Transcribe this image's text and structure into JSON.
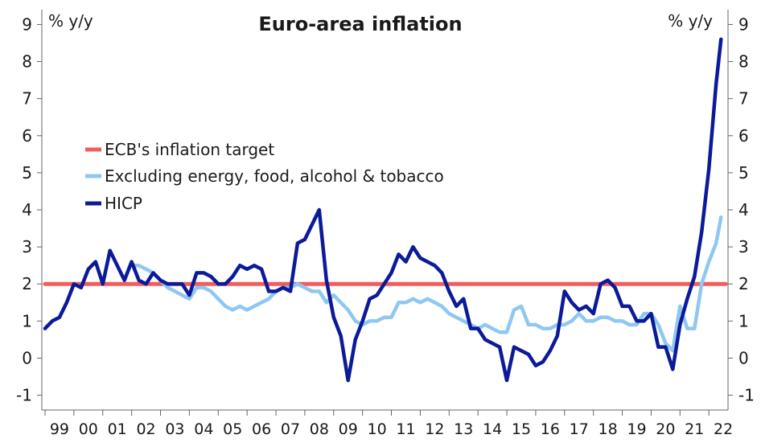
{
  "chart_data": {
    "type": "line",
    "title": "Euro-area inflation",
    "left_unit": "% y/y",
    "right_unit": "% y/y",
    "ylim": [
      -1.4,
      9.4
    ],
    "yticks": [
      -1,
      0,
      1,
      2,
      3,
      4,
      5,
      6,
      7,
      8,
      9
    ],
    "xlim": [
      1999.0,
      2022.58
    ],
    "xticks": [
      {
        "label": "99",
        "x": 1999.5
      },
      {
        "label": "00",
        "x": 2000.5
      },
      {
        "label": "01",
        "x": 2001.5
      },
      {
        "label": "02",
        "x": 2002.5
      },
      {
        "label": "03",
        "x": 2003.5
      },
      {
        "label": "04",
        "x": 2004.5
      },
      {
        "label": "05",
        "x": 2005.5
      },
      {
        "label": "06",
        "x": 2006.5
      },
      {
        "label": "07",
        "x": 2007.5
      },
      {
        "label": "08",
        "x": 2008.5
      },
      {
        "label": "09",
        "x": 2009.5
      },
      {
        "label": "10",
        "x": 2010.5
      },
      {
        "label": "11",
        "x": 2011.5
      },
      {
        "label": "12",
        "x": 2012.5
      },
      {
        "label": "13",
        "x": 2013.5
      },
      {
        "label": "14",
        "x": 2014.5
      },
      {
        "label": "15",
        "x": 2015.5
      },
      {
        "label": "16",
        "x": 2016.5
      },
      {
        "label": "17",
        "x": 2017.5
      },
      {
        "label": "18",
        "x": 2018.5
      },
      {
        "label": "19",
        "x": 2019.5
      },
      {
        "label": "20",
        "x": 2020.5
      },
      {
        "label": "21",
        "x": 2021.5
      },
      {
        "label": "22",
        "x": 2022.5
      }
    ],
    "grid": false,
    "legend_position": "middle-left",
    "series": [
      {
        "name": "ECB's inflation target",
        "color": "#f25c5c",
        "x": [
          1999.0,
          2022.58
        ],
        "y": [
          2.0,
          2.0
        ]
      },
      {
        "name": "Excluding energy, food, alcohol & tobacco",
        "color": "#8ec8f2",
        "x": [
          2002.0,
          2002.25,
          2002.5,
          2002.75,
          2003.0,
          2003.25,
          2003.5,
          2003.75,
          2004.0,
          2004.25,
          2004.5,
          2004.75,
          2005.0,
          2005.25,
          2005.5,
          2005.75,
          2006.0,
          2006.25,
          2006.5,
          2006.75,
          2007.0,
          2007.25,
          2007.5,
          2007.75,
          2008.0,
          2008.25,
          2008.5,
          2008.75,
          2009.0,
          2009.25,
          2009.5,
          2009.75,
          2010.0,
          2010.25,
          2010.5,
          2010.75,
          2011.0,
          2011.25,
          2011.5,
          2011.75,
          2012.0,
          2012.25,
          2012.5,
          2012.75,
          2013.0,
          2013.25,
          2013.5,
          2013.75,
          2014.0,
          2014.25,
          2014.5,
          2014.75,
          2015.0,
          2015.25,
          2015.5,
          2015.75,
          2016.0,
          2016.25,
          2016.5,
          2016.75,
          2017.0,
          2017.25,
          2017.5,
          2017.75,
          2018.0,
          2018.25,
          2018.5,
          2018.75,
          2019.0,
          2019.25,
          2019.5,
          2019.75,
          2020.0,
          2020.25,
          2020.5,
          2020.75,
          2021.0,
          2021.25,
          2021.5,
          2021.75,
          2022.0,
          2022.25,
          2022.42
        ],
        "y": [
          2.5,
          2.5,
          2.4,
          2.3,
          2.1,
          1.9,
          1.8,
          1.7,
          1.6,
          1.9,
          1.9,
          1.8,
          1.6,
          1.4,
          1.3,
          1.4,
          1.3,
          1.4,
          1.5,
          1.6,
          1.8,
          1.9,
          1.9,
          2.0,
          1.9,
          1.8,
          1.8,
          1.5,
          1.7,
          1.5,
          1.3,
          1.0,
          0.9,
          1.0,
          1.0,
          1.1,
          1.1,
          1.5,
          1.5,
          1.6,
          1.5,
          1.6,
          1.5,
          1.4,
          1.2,
          1.1,
          1.0,
          0.9,
          0.8,
          0.9,
          0.8,
          0.7,
          0.7,
          1.3,
          1.4,
          0.9,
          0.9,
          0.8,
          0.8,
          0.9,
          0.9,
          1.0,
          1.2,
          1.0,
          1.0,
          1.1,
          1.1,
          1.0,
          1.0,
          0.9,
          0.9,
          1.2,
          1.2,
          0.9,
          0.4,
          0.2,
          1.4,
          0.8,
          0.8,
          2.0,
          2.6,
          3.1,
          3.8
        ]
      },
      {
        "name": "HICP",
        "color": "#0b1a99",
        "x": [
          1999.0,
          1999.25,
          1999.5,
          1999.75,
          2000.0,
          2000.25,
          2000.5,
          2000.75,
          2001.0,
          2001.25,
          2001.5,
          2001.75,
          2002.0,
          2002.25,
          2002.5,
          2002.75,
          2003.0,
          2003.25,
          2003.5,
          2003.75,
          2004.0,
          2004.25,
          2004.5,
          2004.75,
          2005.0,
          2005.25,
          2005.5,
          2005.75,
          2006.0,
          2006.25,
          2006.5,
          2006.75,
          2007.0,
          2007.25,
          2007.5,
          2007.75,
          2008.0,
          2008.25,
          2008.5,
          2008.75,
          2009.0,
          2009.25,
          2009.5,
          2009.75,
          2010.0,
          2010.25,
          2010.5,
          2010.75,
          2011.0,
          2011.25,
          2011.5,
          2011.75,
          2012.0,
          2012.25,
          2012.5,
          2012.75,
          2013.0,
          2013.25,
          2013.5,
          2013.75,
          2014.0,
          2014.25,
          2014.5,
          2014.75,
          2015.0,
          2015.25,
          2015.5,
          2015.75,
          2016.0,
          2016.25,
          2016.5,
          2016.75,
          2017.0,
          2017.25,
          2017.5,
          2017.75,
          2018.0,
          2018.25,
          2018.5,
          2018.75,
          2019.0,
          2019.25,
          2019.5,
          2019.75,
          2020.0,
          2020.25,
          2020.5,
          2020.75,
          2021.0,
          2021.25,
          2021.5,
          2021.75,
          2022.0,
          2022.25,
          2022.42
        ],
        "y": [
          0.8,
          1.0,
          1.1,
          1.5,
          2.0,
          1.9,
          2.4,
          2.6,
          2.0,
          2.9,
          2.5,
          2.1,
          2.6,
          2.1,
          2.0,
          2.3,
          2.1,
          2.0,
          2.0,
          2.0,
          1.7,
          2.3,
          2.3,
          2.2,
          2.0,
          2.0,
          2.2,
          2.5,
          2.4,
          2.5,
          2.4,
          1.8,
          1.8,
          1.9,
          1.8,
          3.1,
          3.2,
          3.6,
          4.0,
          2.1,
          1.1,
          0.6,
          -0.6,
          0.5,
          1.0,
          1.6,
          1.7,
          2.0,
          2.3,
          2.8,
          2.6,
          3.0,
          2.7,
          2.6,
          2.5,
          2.3,
          1.8,
          1.4,
          1.6,
          0.8,
          0.8,
          0.5,
          0.4,
          0.3,
          -0.6,
          0.3,
          0.2,
          0.1,
          -0.2,
          -0.1,
          0.2,
          0.6,
          1.8,
          1.5,
          1.3,
          1.4,
          1.2,
          2.0,
          2.1,
          1.9,
          1.4,
          1.4,
          1.0,
          1.0,
          1.2,
          0.3,
          0.3,
          -0.3,
          0.9,
          1.6,
          2.2,
          3.4,
          5.1,
          7.4,
          8.6
        ]
      }
    ]
  }
}
